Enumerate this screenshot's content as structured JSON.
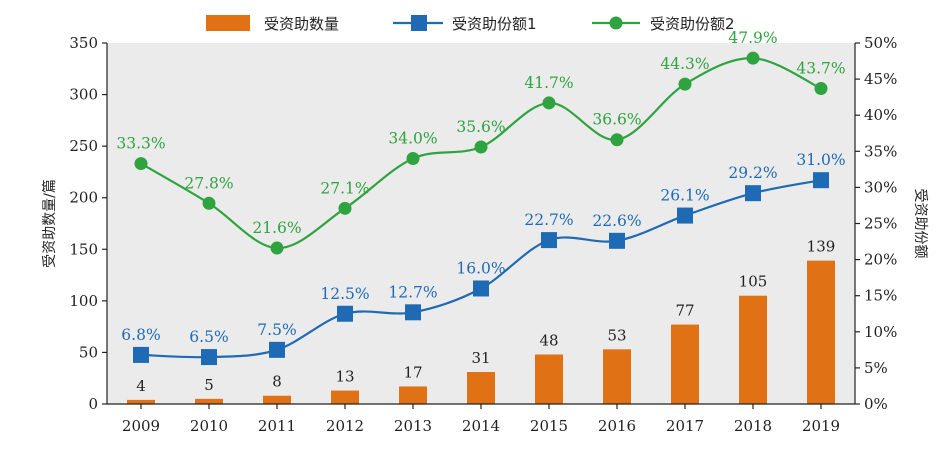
{
  "chart_data": {
    "type": "bar",
    "categories": [
      "2009",
      "2010",
      "2011",
      "2012",
      "2013",
      "2014",
      "2015",
      "2016",
      "2017",
      "2018",
      "2019"
    ],
    "series": [
      {
        "name": "受资助数量",
        "type": "bar",
        "axis": "left",
        "color": "#E07114",
        "values": [
          4,
          5,
          8,
          13,
          17,
          31,
          48,
          53,
          77,
          105,
          139
        ],
        "labels": [
          "4",
          "5",
          "8",
          "13",
          "17",
          "31",
          "48",
          "53",
          "77",
          "105",
          "139"
        ]
      },
      {
        "name": "受资助份额1",
        "type": "line",
        "marker": "square",
        "axis": "right",
        "color": "#1F6AB5",
        "values": [
          6.8,
          6.5,
          7.5,
          12.5,
          12.7,
          16.0,
          22.7,
          22.6,
          26.1,
          29.2,
          31.0
        ],
        "labels": [
          "6.8%",
          "6.5%",
          "7.5%",
          "12.5%",
          "12.7%",
          "16.0%",
          "22.7%",
          "22.6%",
          "26.1%",
          "29.2%",
          "31.0%"
        ]
      },
      {
        "name": "受资助份额2",
        "type": "line",
        "marker": "circle",
        "axis": "right",
        "color": "#2FA33F",
        "values": [
          33.3,
          27.8,
          21.6,
          27.1,
          34.0,
          35.6,
          41.7,
          36.6,
          44.3,
          47.9,
          43.7
        ],
        "labels": [
          "33.3%",
          "27.8%",
          "21.6%",
          "27.1%",
          "34.0%",
          "35.6%",
          "41.7%",
          "36.6%",
          "44.3%",
          "47.9%",
          "43.7%"
        ]
      }
    ],
    "ylabel": "受资助数量/篇",
    "y2label": "受资助份额",
    "ylim": [
      0,
      350
    ],
    "y2lim": [
      0,
      50
    ],
    "yticks": [
      "0",
      "50",
      "100",
      "150",
      "200",
      "250",
      "300",
      "350"
    ],
    "y2ticks": [
      "0%",
      "5%",
      "10%",
      "15%",
      "20%",
      "25%",
      "30%",
      "35%",
      "40%",
      "45%",
      "50%"
    ],
    "legend": "top",
    "grid": false,
    "background": "#EBEBEB"
  }
}
